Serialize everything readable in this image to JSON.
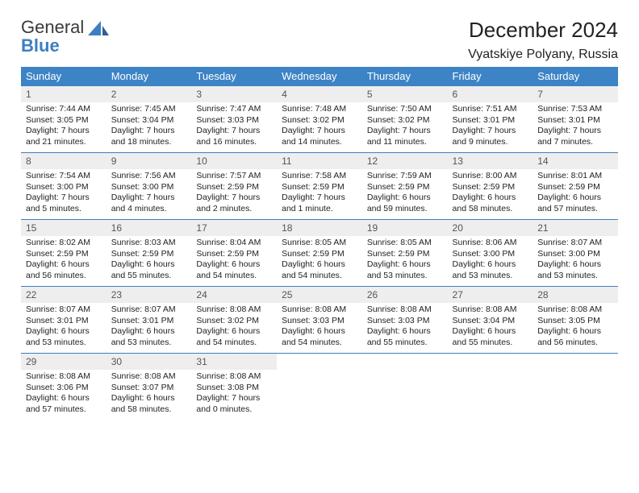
{
  "logo": {
    "line1": "General",
    "line2": "Blue"
  },
  "header": {
    "month": "December 2024",
    "location": "Vyatskiye Polyany, Russia"
  },
  "colors": {
    "header_bg": "#3d84c6",
    "header_fg": "#ffffff",
    "border": "#3d7fc0",
    "daynum_bg": "#eeeeee",
    "text": "#222222"
  },
  "columns": [
    "Sunday",
    "Monday",
    "Tuesday",
    "Wednesday",
    "Thursday",
    "Friday",
    "Saturday"
  ],
  "weeks": [
    [
      {
        "day": "1",
        "sunrise": "Sunrise: 7:44 AM",
        "sunset": "Sunset: 3:05 PM",
        "daylight1": "Daylight: 7 hours",
        "daylight2": "and 21 minutes."
      },
      {
        "day": "2",
        "sunrise": "Sunrise: 7:45 AM",
        "sunset": "Sunset: 3:04 PM",
        "daylight1": "Daylight: 7 hours",
        "daylight2": "and 18 minutes."
      },
      {
        "day": "3",
        "sunrise": "Sunrise: 7:47 AM",
        "sunset": "Sunset: 3:03 PM",
        "daylight1": "Daylight: 7 hours",
        "daylight2": "and 16 minutes."
      },
      {
        "day": "4",
        "sunrise": "Sunrise: 7:48 AM",
        "sunset": "Sunset: 3:02 PM",
        "daylight1": "Daylight: 7 hours",
        "daylight2": "and 14 minutes."
      },
      {
        "day": "5",
        "sunrise": "Sunrise: 7:50 AM",
        "sunset": "Sunset: 3:02 PM",
        "daylight1": "Daylight: 7 hours",
        "daylight2": "and 11 minutes."
      },
      {
        "day": "6",
        "sunrise": "Sunrise: 7:51 AM",
        "sunset": "Sunset: 3:01 PM",
        "daylight1": "Daylight: 7 hours",
        "daylight2": "and 9 minutes."
      },
      {
        "day": "7",
        "sunrise": "Sunrise: 7:53 AM",
        "sunset": "Sunset: 3:01 PM",
        "daylight1": "Daylight: 7 hours",
        "daylight2": "and 7 minutes."
      }
    ],
    [
      {
        "day": "8",
        "sunrise": "Sunrise: 7:54 AM",
        "sunset": "Sunset: 3:00 PM",
        "daylight1": "Daylight: 7 hours",
        "daylight2": "and 5 minutes."
      },
      {
        "day": "9",
        "sunrise": "Sunrise: 7:56 AM",
        "sunset": "Sunset: 3:00 PM",
        "daylight1": "Daylight: 7 hours",
        "daylight2": "and 4 minutes."
      },
      {
        "day": "10",
        "sunrise": "Sunrise: 7:57 AM",
        "sunset": "Sunset: 2:59 PM",
        "daylight1": "Daylight: 7 hours",
        "daylight2": "and 2 minutes."
      },
      {
        "day": "11",
        "sunrise": "Sunrise: 7:58 AM",
        "sunset": "Sunset: 2:59 PM",
        "daylight1": "Daylight: 7 hours",
        "daylight2": "and 1 minute."
      },
      {
        "day": "12",
        "sunrise": "Sunrise: 7:59 AM",
        "sunset": "Sunset: 2:59 PM",
        "daylight1": "Daylight: 6 hours",
        "daylight2": "and 59 minutes."
      },
      {
        "day": "13",
        "sunrise": "Sunrise: 8:00 AM",
        "sunset": "Sunset: 2:59 PM",
        "daylight1": "Daylight: 6 hours",
        "daylight2": "and 58 minutes."
      },
      {
        "day": "14",
        "sunrise": "Sunrise: 8:01 AM",
        "sunset": "Sunset: 2:59 PM",
        "daylight1": "Daylight: 6 hours",
        "daylight2": "and 57 minutes."
      }
    ],
    [
      {
        "day": "15",
        "sunrise": "Sunrise: 8:02 AM",
        "sunset": "Sunset: 2:59 PM",
        "daylight1": "Daylight: 6 hours",
        "daylight2": "and 56 minutes."
      },
      {
        "day": "16",
        "sunrise": "Sunrise: 8:03 AM",
        "sunset": "Sunset: 2:59 PM",
        "daylight1": "Daylight: 6 hours",
        "daylight2": "and 55 minutes."
      },
      {
        "day": "17",
        "sunrise": "Sunrise: 8:04 AM",
        "sunset": "Sunset: 2:59 PM",
        "daylight1": "Daylight: 6 hours",
        "daylight2": "and 54 minutes."
      },
      {
        "day": "18",
        "sunrise": "Sunrise: 8:05 AM",
        "sunset": "Sunset: 2:59 PM",
        "daylight1": "Daylight: 6 hours",
        "daylight2": "and 54 minutes."
      },
      {
        "day": "19",
        "sunrise": "Sunrise: 8:05 AM",
        "sunset": "Sunset: 2:59 PM",
        "daylight1": "Daylight: 6 hours",
        "daylight2": "and 53 minutes."
      },
      {
        "day": "20",
        "sunrise": "Sunrise: 8:06 AM",
        "sunset": "Sunset: 3:00 PM",
        "daylight1": "Daylight: 6 hours",
        "daylight2": "and 53 minutes."
      },
      {
        "day": "21",
        "sunrise": "Sunrise: 8:07 AM",
        "sunset": "Sunset: 3:00 PM",
        "daylight1": "Daylight: 6 hours",
        "daylight2": "and 53 minutes."
      }
    ],
    [
      {
        "day": "22",
        "sunrise": "Sunrise: 8:07 AM",
        "sunset": "Sunset: 3:01 PM",
        "daylight1": "Daylight: 6 hours",
        "daylight2": "and 53 minutes."
      },
      {
        "day": "23",
        "sunrise": "Sunrise: 8:07 AM",
        "sunset": "Sunset: 3:01 PM",
        "daylight1": "Daylight: 6 hours",
        "daylight2": "and 53 minutes."
      },
      {
        "day": "24",
        "sunrise": "Sunrise: 8:08 AM",
        "sunset": "Sunset: 3:02 PM",
        "daylight1": "Daylight: 6 hours",
        "daylight2": "and 54 minutes."
      },
      {
        "day": "25",
        "sunrise": "Sunrise: 8:08 AM",
        "sunset": "Sunset: 3:03 PM",
        "daylight1": "Daylight: 6 hours",
        "daylight2": "and 54 minutes."
      },
      {
        "day": "26",
        "sunrise": "Sunrise: 8:08 AM",
        "sunset": "Sunset: 3:03 PM",
        "daylight1": "Daylight: 6 hours",
        "daylight2": "and 55 minutes."
      },
      {
        "day": "27",
        "sunrise": "Sunrise: 8:08 AM",
        "sunset": "Sunset: 3:04 PM",
        "daylight1": "Daylight: 6 hours",
        "daylight2": "and 55 minutes."
      },
      {
        "day": "28",
        "sunrise": "Sunrise: 8:08 AM",
        "sunset": "Sunset: 3:05 PM",
        "daylight1": "Daylight: 6 hours",
        "daylight2": "and 56 minutes."
      }
    ],
    [
      {
        "day": "29",
        "sunrise": "Sunrise: 8:08 AM",
        "sunset": "Sunset: 3:06 PM",
        "daylight1": "Daylight: 6 hours",
        "daylight2": "and 57 minutes."
      },
      {
        "day": "30",
        "sunrise": "Sunrise: 8:08 AM",
        "sunset": "Sunset: 3:07 PM",
        "daylight1": "Daylight: 6 hours",
        "daylight2": "and 58 minutes."
      },
      {
        "day": "31",
        "sunrise": "Sunrise: 8:08 AM",
        "sunset": "Sunset: 3:08 PM",
        "daylight1": "Daylight: 7 hours",
        "daylight2": "and 0 minutes."
      },
      {
        "empty": true
      },
      {
        "empty": true
      },
      {
        "empty": true
      },
      {
        "empty": true
      }
    ]
  ]
}
